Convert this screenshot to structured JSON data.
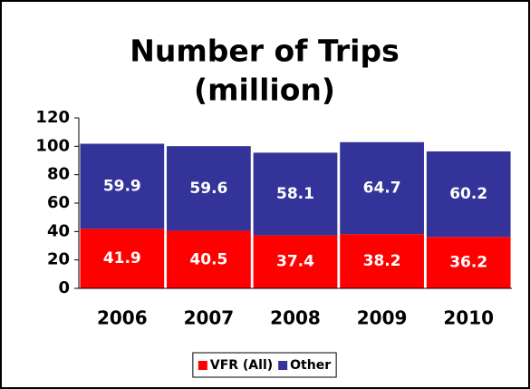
{
  "chart_data": {
    "type": "stacked_bar",
    "title": [
      "Number of Trips",
      "(million)"
    ],
    "categories": [
      "2006",
      "2007",
      "2008",
      "2009",
      "2010"
    ],
    "series": [
      {
        "name": "VFR (All)",
        "color": "#ff0000",
        "values": [
          41.9,
          40.5,
          37.4,
          38.2,
          36.2
        ]
      },
      {
        "name": "Other",
        "color": "#333399",
        "values": [
          59.9,
          59.6,
          58.1,
          64.7,
          60.2
        ]
      }
    ],
    "ylim": [
      0,
      120
    ],
    "yticks": [
      0,
      20,
      40,
      60,
      80,
      100,
      120
    ],
    "grid": false,
    "legend": "bottom"
  }
}
